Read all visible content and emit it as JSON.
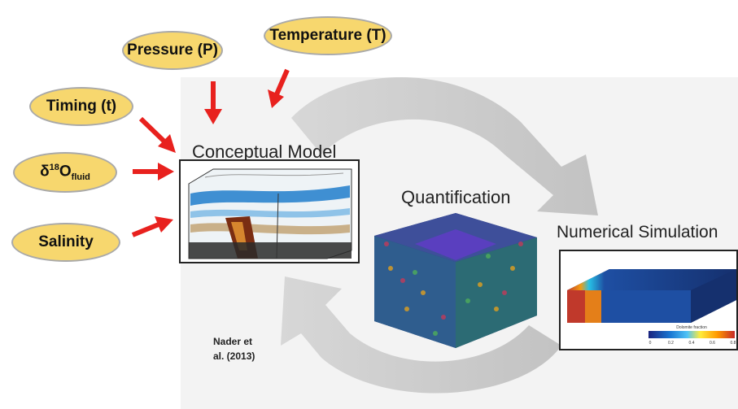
{
  "inputs": {
    "pressure": "Pressure (P)",
    "temperature": "Temperature (T)",
    "timing": "Timing (t)",
    "isotope": {
      "delta": "δ",
      "mass": "18",
      "element": "O",
      "subscript": "fluid"
    },
    "salinity": "Salinity"
  },
  "stages": {
    "conceptual": "Conceptual Model",
    "quantification": "Quantification",
    "numerical": "Numerical Simulation"
  },
  "citation": {
    "line1": "Nader et",
    "line2": "al. (2013)"
  },
  "colorbar": {
    "title": "Dolomite fraction",
    "ticks": [
      "0",
      "0.2",
      "0.4",
      "0.6",
      "0.8"
    ]
  },
  "colors": {
    "oval_fill": "#f7d76e",
    "arrow": "#e8211e",
    "cycle_arrow": "#c8c8c8"
  }
}
